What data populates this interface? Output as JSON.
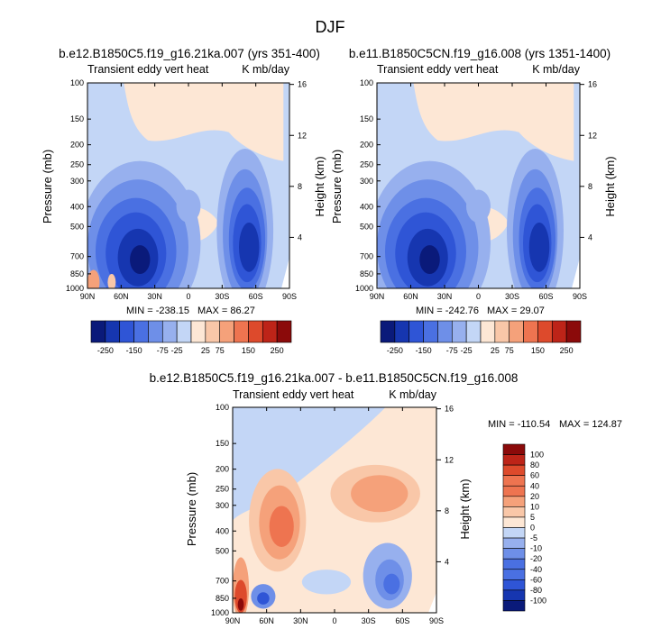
{
  "figure": {
    "title": "DJF"
  },
  "colors": {
    "levels_14": [
      "#0a1a7a",
      "#1636b0",
      "#2f55d6",
      "#4a70e2",
      "#6e8fe8",
      "#97b0ee",
      "#c3d6f6",
      "#fde7d5",
      "#f9c7a8",
      "#f5a17a",
      "#ee7450",
      "#dd4a2c",
      "#bd2418",
      "#8b0a0a"
    ],
    "levels_diff": [
      "#0a1a7a",
      "#1636b0",
      "#2f55d6",
      "#4a70e2",
      "#6e8fe8",
      "#97b0ee",
      "#c3d6f6",
      "#fde7d5",
      "#f9c7a8",
      "#f5a17a",
      "#ee7450",
      "#dd4a2c",
      "#bd2418",
      "#8b0a0a"
    ],
    "zero_fill": "#fde7d5",
    "light_blue": "#dce8fa"
  },
  "chart_data": [
    {
      "type": "heatmap",
      "title": "b.e12.B1850C5.f19_g16.21ka.007 (yrs 351-400)",
      "left_subtitle": "Transient eddy vert heat",
      "right_subtitle": "K mb/day",
      "xlabel": "",
      "ylabel": "Pressure (mb)",
      "y2label": "Height (km)",
      "x_ticks": [
        "90N",
        "60N",
        "30N",
        "0",
        "30S",
        "60S",
        "90S"
      ],
      "x_values": [
        90,
        60,
        30,
        0,
        -30,
        -60,
        -90
      ],
      "y_ticks": [
        "100",
        "150",
        "200",
        "250",
        "300",
        "400",
        "500",
        "700",
        "850",
        "1000"
      ],
      "y_values": [
        100,
        150,
        200,
        250,
        300,
        400,
        500,
        700,
        850,
        1000
      ],
      "y2_ticks": [
        "16",
        "12",
        "8",
        "4"
      ],
      "y2_values": [
        16,
        12,
        8,
        4
      ],
      "stats": {
        "min_label": "MIN = -238.15",
        "max_label": "MAX = 86.27",
        "min": -238.15,
        "max": 86.27
      },
      "levels": [
        -250,
        -150,
        -75,
        -25,
        25,
        75,
        150,
        250
      ],
      "features": [
        {
          "lat": 55,
          "p": 700,
          "value": -220
        },
        {
          "lat": -50,
          "p": 650,
          "value": -180
        },
        {
          "lat": 82,
          "p": 900,
          "value": 80
        }
      ]
    },
    {
      "type": "heatmap",
      "title": "b.e11.B1850C5CN.f19_g16.008 (yrs 1351-1400)",
      "left_subtitle": "Transient eddy vert heat",
      "right_subtitle": "K mb/day",
      "xlabel": "",
      "ylabel": "Pressure (mb)",
      "y2label": "Height (km)",
      "x_ticks": [
        "90N",
        "60N",
        "30N",
        "0",
        "30S",
        "60S",
        "90S"
      ],
      "x_values": [
        90,
        60,
        30,
        0,
        -30,
        -60,
        -90
      ],
      "y_ticks": [
        "100",
        "150",
        "200",
        "250",
        "300",
        "400",
        "500",
        "700",
        "850",
        "1000"
      ],
      "y_values": [
        100,
        150,
        200,
        250,
        300,
        400,
        500,
        700,
        850,
        1000
      ],
      "y2_ticks": [
        "16",
        "12",
        "8",
        "4"
      ],
      "y2_values": [
        16,
        12,
        8,
        4
      ],
      "stats": {
        "min_label": "MIN = -242.76",
        "max_label": "MAX = 29.07",
        "min": -242.76,
        "max": 29.07
      },
      "levels": [
        -250,
        -150,
        -75,
        -25,
        25,
        75,
        150,
        250
      ],
      "features": [
        {
          "lat": 55,
          "p": 700,
          "value": -230
        },
        {
          "lat": -50,
          "p": 650,
          "value": -190
        }
      ]
    },
    {
      "type": "heatmap",
      "title": "b.e12.B1850C5.f19_g16.21ka.007 - b.e11.B1850C5CN.f19_g16.008",
      "left_subtitle": "Transient eddy vert heat",
      "right_subtitle": "K mb/day",
      "xlabel": "",
      "ylabel": "Pressure (mb)",
      "y2label": "Height (km)",
      "x_ticks": [
        "90N",
        "60N",
        "30N",
        "0",
        "30S",
        "60S",
        "90S"
      ],
      "x_values": [
        90,
        60,
        30,
        0,
        -30,
        -60,
        -90
      ],
      "y_ticks": [
        "100",
        "150",
        "200",
        "250",
        "300",
        "400",
        "500",
        "700",
        "850",
        "1000"
      ],
      "y_values": [
        100,
        150,
        200,
        250,
        300,
        400,
        500,
        700,
        850,
        1000
      ],
      "y2_ticks": [
        "16",
        "12",
        "8",
        "4"
      ],
      "y2_values": [
        16,
        12,
        8,
        4
      ],
      "stats": {
        "min_label": "MIN = -110.54",
        "max_label": "MAX = 124.87",
        "min": -110.54,
        "max": 124.87
      },
      "levels": [
        -100,
        -80,
        -60,
        -40,
        -20,
        -10,
        -5,
        0,
        5,
        10,
        20,
        40,
        60,
        80,
        100
      ],
      "features": [
        {
          "lat": 85,
          "p": 850,
          "value": 120
        },
        {
          "lat": 55,
          "p": 500,
          "value": 40
        },
        {
          "lat": -55,
          "p": 600,
          "value": -40
        }
      ]
    }
  ],
  "colorbars": {
    "top_labels": [
      "-250",
      "-150",
      "-75",
      "-25",
      "25",
      "75",
      "150",
      "250"
    ],
    "diff_labels": [
      "100",
      "80",
      "60",
      "40",
      "20",
      "10",
      "5",
      "0",
      "-5",
      "-10",
      "-20",
      "-40",
      "-60",
      "-80",
      "-100"
    ]
  }
}
